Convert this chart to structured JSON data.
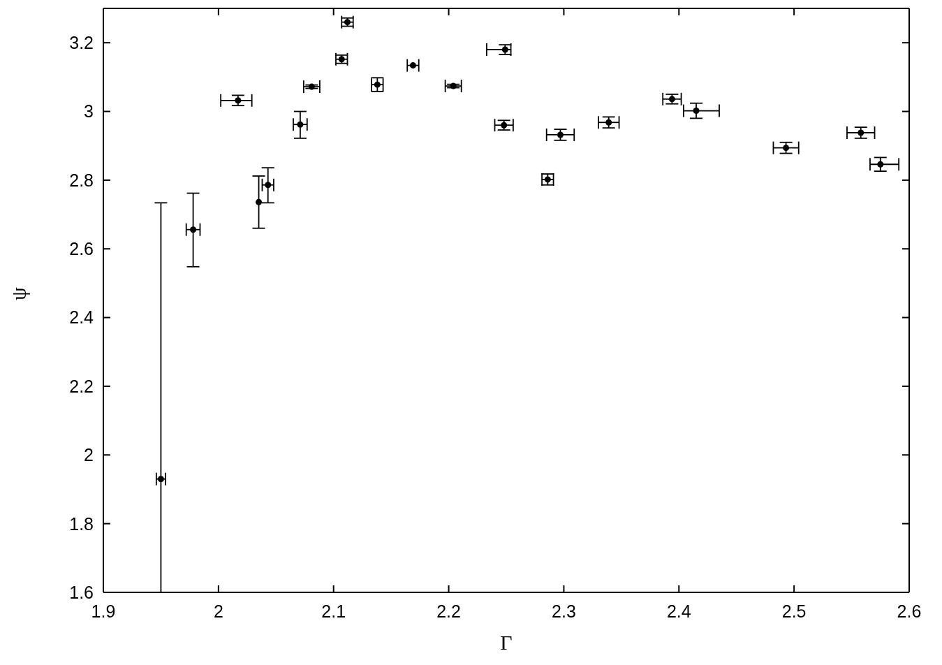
{
  "chart_data": {
    "type": "scatter",
    "xlabel": "Γ",
    "ylabel": "ψ",
    "xlim": [
      1.9,
      2.6
    ],
    "xticks": [
      1.9,
      2,
      2.1,
      2.2,
      2.3,
      2.4,
      2.5,
      2.6
    ],
    "ylim": [
      1.6,
      3.3
    ],
    "yticks": [
      1.6,
      1.8,
      2,
      2.2,
      2.4,
      2.6,
      2.8,
      3,
      3.2
    ],
    "grid": false,
    "legend": false,
    "marker": "circle",
    "series": [
      {
        "color": "#000000",
        "x": [
          1.95,
          1.978,
          2.017,
          2.035,
          2.043,
          2.071,
          2.081,
          2.107,
          2.112,
          2.138,
          2.169,
          2.204,
          2.249,
          2.248,
          2.286,
          2.297,
          2.339,
          2.394,
          2.415,
          2.493,
          2.558,
          2.575
        ],
        "values": [
          1.93,
          2.656,
          3.032,
          2.736,
          2.786,
          2.962,
          3.072,
          3.152,
          3.26,
          3.078,
          3.134,
          3.074,
          3.18,
          2.96,
          2.802,
          2.932,
          2.968,
          3.036,
          3.002,
          2.894,
          2.938,
          2.846
        ],
        "errors": [
          [
            1.6,
            2.734
          ],
          [
            2.548,
            2.762
          ],
          0.015,
          [
            2.66,
            2.812
          ],
          [
            2.734,
            2.836
          ],
          [
            2.922,
            3.0
          ],
          0.005,
          0.012,
          0.012,
          0.02,
          null,
          0.005,
          0.014,
          0.014,
          0.016,
          0.016,
          0.016,
          0.014,
          0.022,
          0.016,
          0.016,
          0.02
        ],
        "xerrors": [
          0.004,
          0.006,
          [
            2.002,
            2.029
          ],
          null,
          0.005,
          0.006,
          0.007,
          0.005,
          0.005,
          0.005,
          0.005,
          0.007,
          [
            2.233,
            2.254
          ],
          0.008,
          0.005,
          0.012,
          0.009,
          0.008,
          [
            2.404,
            2.435
          ],
          0.011,
          0.012,
          [
            2.566,
            2.591
          ]
        ]
      }
    ]
  }
}
